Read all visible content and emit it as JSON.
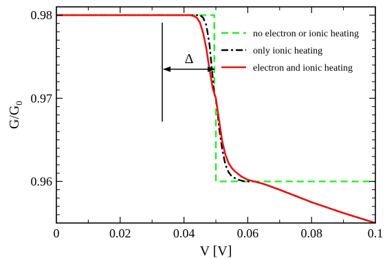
{
  "chart_data": {
    "type": "line",
    "xlabel": "V [V]",
    "ylabel": "G/G",
    "ylabel_sub": "0",
    "xlim": [
      0,
      0.1
    ],
    "ylim": [
      0.955,
      0.981
    ],
    "xticks": [
      0,
      0.02,
      0.04,
      0.06,
      0.08,
      0.1
    ],
    "xtick_labels": [
      "0",
      "0.02",
      "0.04",
      "0.06",
      "0.08",
      "0.1"
    ],
    "yticks": [
      0.96,
      0.97,
      0.98
    ],
    "ytick_labels": [
      "0.96",
      "0.97",
      "0.98"
    ],
    "grid": false,
    "legend_position": "top-right",
    "annotation": {
      "label": "Δ",
      "x_from": 0.0332,
      "x_to": 0.05,
      "y": 0.9735,
      "marker_x": 0.0332,
      "marker_y_range": [
        0.9672,
        0.9791
      ]
    },
    "series": [
      {
        "name": "no electron or ionic heating",
        "color": "#22ee22",
        "style": "dashed",
        "x": [
          0,
          0.0435,
          0.0435,
          0.0495,
          0.0495,
          0.05,
          0.05,
          0.1
        ],
        "y": [
          0.98,
          0.98,
          0.98,
          0.98,
          0.97,
          0.97,
          0.96,
          0.96
        ]
      },
      {
        "name": "only ionic heating",
        "color": "#000000",
        "style": "dashdot",
        "x": [
          0,
          0.045,
          0.046,
          0.047,
          0.048,
          0.049,
          0.0495,
          0.05,
          0.0505,
          0.051,
          0.052,
          0.053,
          0.054,
          0.055,
          0.057,
          0.059,
          0.062,
          0.065,
          0.07,
          0.08,
          0.09,
          0.1
        ],
        "y": [
          0.98,
          0.98,
          0.9797,
          0.9788,
          0.9765,
          0.9725,
          0.9705,
          0.97,
          0.9685,
          0.9665,
          0.9638,
          0.962,
          0.9611,
          0.9606,
          0.9602,
          0.96,
          0.96,
          0.9597,
          0.959,
          0.9575,
          0.9562,
          0.955
        ]
      },
      {
        "name": "electron and ionic heating",
        "color": "#ee1111",
        "style": "solid",
        "x": [
          0,
          0.042,
          0.043,
          0.044,
          0.045,
          0.046,
          0.047,
          0.048,
          0.049,
          0.05,
          0.051,
          0.052,
          0.053,
          0.054,
          0.055,
          0.056,
          0.057,
          0.058,
          0.06,
          0.062,
          0.065,
          0.07,
          0.08,
          0.09,
          0.1
        ],
        "y": [
          0.98,
          0.98,
          0.9799,
          0.9797,
          0.9791,
          0.9779,
          0.976,
          0.9735,
          0.9712,
          0.97,
          0.9674,
          0.9648,
          0.9632,
          0.9622,
          0.9616,
          0.9612,
          0.9609,
          0.9606,
          0.9602,
          0.96,
          0.9597,
          0.959,
          0.9575,
          0.9562,
          0.955
        ]
      }
    ]
  }
}
